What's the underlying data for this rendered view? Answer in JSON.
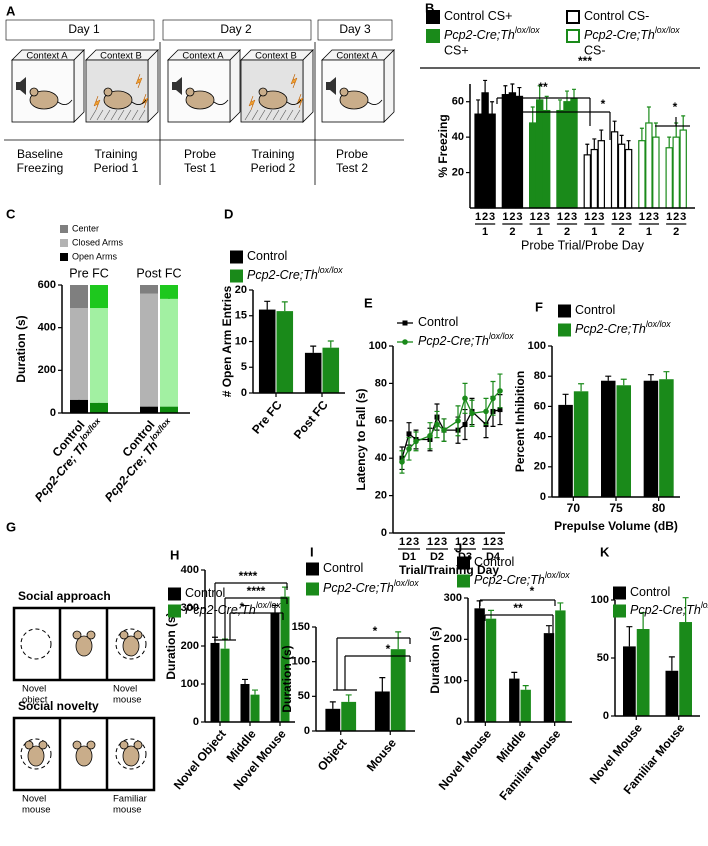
{
  "panel_labels": [
    "A",
    "B",
    "C",
    "D",
    "E",
    "F",
    "G",
    "H",
    "I",
    "J",
    "K"
  ],
  "diagram_a": {
    "days": [
      "Day 1",
      "Day 2",
      "Day 3"
    ],
    "contexts": [
      "Context A",
      "Context B",
      "Context A",
      "Context B",
      "Context A"
    ],
    "phases": [
      [
        "Baseline",
        "Freezing"
      ],
      [
        "Training",
        "Period 1"
      ],
      [
        "Probe",
        "Test 1"
      ],
      [
        "Training",
        "Period 2"
      ],
      [
        "Probe",
        "Test 2"
      ]
    ]
  },
  "diagram_g": {
    "sections": [
      {
        "title": "Social approach",
        "labels": [
          [
            "Novel",
            "object"
          ],
          [
            "Novel",
            "mouse"
          ]
        ]
      },
      {
        "title": "Social novelty",
        "labels": [
          [
            "Novel",
            "mouse"
          ],
          [
            "Familiar",
            "mouse"
          ]
        ]
      }
    ]
  },
  "chart_data": [
    {
      "type": "probe_bar",
      "ylabel": "% Freezing",
      "xlabel": "Probe Trial/Probe Day",
      "trials": [
        "1",
        "2",
        "3"
      ],
      "days": [
        "1",
        "2"
      ],
      "ylim": [
        0,
        70
      ],
      "yticks": [
        20,
        40,
        60
      ],
      "series": [
        {
          "name": "Control CS+",
          "color": "#000000",
          "filled": true,
          "values": [
            53,
            65,
            53,
            64,
            65,
            63
          ],
          "errors": [
            8,
            7,
            7,
            5,
            5,
            5
          ]
        },
        {
          "name": "Pcp2-Cre;Th",
          "name_sup": "lox/lox",
          "name_suffix": "CS+",
          "color": "#1a8a1a",
          "filled": true,
          "values": [
            48,
            61,
            55,
            55,
            60,
            62
          ],
          "errors": [
            9,
            8,
            8,
            6,
            6,
            5
          ]
        },
        {
          "name": "Control CS-",
          "color": "#000000",
          "filled": false,
          "values": [
            30,
            33,
            38,
            43,
            36,
            33
          ],
          "errors": [
            6,
            6,
            6,
            6,
            5,
            5
          ]
        },
        {
          "name": "Pcp2-Cre;Th",
          "name_sup": "lox/lox",
          "name_suffix": "CS-",
          "color": "#1a8a1a",
          "filled": false,
          "values": [
            38,
            48,
            40,
            34,
            40,
            44
          ],
          "errors": [
            7,
            9,
            8,
            6,
            8,
            8
          ]
        }
      ],
      "annotations": [
        "***",
        "**",
        "*",
        "*"
      ]
    },
    {
      "type": "stacked_bar",
      "ylabel": "Duration (s)",
      "groups": [
        "Pre FC",
        "Post FC"
      ],
      "categories": [
        "Control",
        "Pcp2-Cre; Th",
        "Control",
        "Pcp2-Cre; Th"
      ],
      "category_sup": [
        null,
        "lox/lox",
        null,
        "lox/lox"
      ],
      "ylim": [
        0,
        600
      ],
      "yticks": [
        0,
        200,
        400,
        600
      ],
      "series": [
        {
          "name": "Center",
          "colors": [
            "#7f7f7f",
            "#1ec81e"
          ],
          "values": [
            108,
            108,
            40,
            65
          ]
        },
        {
          "name": "Closed Arms",
          "colors": [
            "#b3b3b3",
            "#a2f0a2"
          ],
          "values": [
            430,
            444,
            530,
            505
          ],
          "errors": [
            8,
            6,
            6,
            6
          ]
        },
        {
          "name": "Open Arms",
          "colors": [
            "#000000",
            "#0d8a0d"
          ],
          "values": [
            62,
            48,
            30,
            30
          ],
          "errors": [
            5,
            4,
            3,
            3
          ]
        }
      ]
    },
    {
      "type": "bar",
      "ylabel": "# Open Arm Entries",
      "categories": [
        "Pre FC",
        "Post FC"
      ],
      "ylim": [
        0,
        20
      ],
      "yticks": [
        0,
        5,
        10,
        15,
        20
      ],
      "series": [
        {
          "name": "Control",
          "color": "#000000",
          "values": [
            16.2,
            7.8
          ],
          "errors": [
            1.6,
            1.3
          ]
        },
        {
          "name": "Pcp2-Cre;Th",
          "name_sup": "lox/lox",
          "color": "#1a8a1a",
          "values": [
            15.9,
            8.8
          ],
          "errors": [
            1.8,
            1.3
          ]
        }
      ]
    },
    {
      "type": "line",
      "ylabel": "Latency to Fall (s)",
      "xlabel": "Trial/Training Day",
      "categories": [
        "1",
        "2",
        "3",
        "1",
        "2",
        "3",
        "1",
        "2",
        "3",
        "1",
        "2",
        "3"
      ],
      "groups": [
        "D1",
        "D2",
        "D3",
        "D4"
      ],
      "ylim": [
        0,
        100
      ],
      "yticks": [
        0,
        20,
        40,
        60,
        80,
        100
      ],
      "series": [
        {
          "name": "Control",
          "color": "#000000",
          "values": [
            40,
            53,
            50,
            50,
            62,
            55,
            55,
            58,
            65,
            58,
            65,
            66
          ],
          "errors": [
            6,
            6,
            5,
            6,
            7,
            6,
            7,
            8,
            7,
            7,
            8,
            8
          ]
        },
        {
          "name": "Pcp2-Cre;Th",
          "name_sup": "lox/lox",
          "color": "#1a8a1a",
          "values": [
            38,
            45,
            49,
            52,
            58,
            55,
            60,
            72,
            64,
            65,
            72,
            76
          ],
          "errors": [
            6,
            6,
            5,
            7,
            7,
            6,
            8,
            8,
            7,
            7,
            9,
            9
          ]
        }
      ]
    },
    {
      "type": "bar",
      "ylabel": "Percent Inhibition",
      "xlabel": "Prepulse Volume (dB)",
      "categories": [
        "70",
        "75",
        "80"
      ],
      "ylim": [
        0,
        100
      ],
      "yticks": [
        0,
        20,
        40,
        60,
        80,
        100
      ],
      "series": [
        {
          "name": "Control",
          "color": "#000000",
          "values": [
            61,
            77,
            77
          ],
          "errors": [
            7,
            3,
            4
          ]
        },
        {
          "name": "Pcp2-Cre;Th",
          "name_sup": "lox/lox",
          "color": "#1a8a1a",
          "values": [
            70,
            74,
            78
          ],
          "errors": [
            5,
            4,
            5
          ]
        }
      ]
    },
    {
      "type": "bar",
      "ylabel": "Duration (s)",
      "categories": [
        "Novel Object",
        "Middle",
        "Novel Mouse"
      ],
      "ylim": [
        0,
        400
      ],
      "yticks": [
        0,
        100,
        200,
        300,
        400
      ],
      "series": [
        {
          "name": "Control",
          "color": "#000000",
          "values": [
            208,
            100,
            287
          ],
          "errors": [
            15,
            12,
            20
          ]
        },
        {
          "name": "Pcp2-Cre;Th",
          "name_sup": "lox/lox",
          "color": "#1a8a1a",
          "values": [
            193,
            72,
            330
          ],
          "errors": [
            25,
            12,
            25
          ]
        }
      ],
      "annotations": [
        "****",
        "****",
        "*"
      ]
    },
    {
      "type": "bar",
      "ylabel": "Duration (s)",
      "categories": [
        "Object",
        "Mouse"
      ],
      "ylim": [
        0,
        150
      ],
      "yticks": [
        0,
        50,
        100,
        150
      ],
      "series": [
        {
          "name": "Control",
          "color": "#000000",
          "values": [
            32,
            57
          ],
          "errors": [
            10,
            20
          ]
        },
        {
          "name": "Pcp2-Cre;Th",
          "name_sup": "lox/lox",
          "color": "#1a8a1a",
          "values": [
            42,
            118
          ],
          "errors": [
            10,
            25
          ]
        }
      ],
      "annotations": [
        "*",
        "*"
      ]
    },
    {
      "type": "bar",
      "ylabel": "Duration (s)",
      "categories": [
        "Novel Mouse",
        "Middle",
        "Familiar Mouse"
      ],
      "ylim": [
        0,
        300
      ],
      "yticks": [
        0,
        100,
        200,
        300
      ],
      "series": [
        {
          "name": "Control",
          "color": "#000000",
          "values": [
            275,
            105,
            215
          ],
          "errors": [
            18,
            15,
            18
          ]
        },
        {
          "name": "Pcp2-Cre;Th",
          "name_sup": "lox/lox",
          "color": "#1a8a1a",
          "values": [
            250,
            78,
            270
          ],
          "errors": [
            20,
            10,
            18
          ]
        }
      ],
      "annotations": [
        "*",
        "**"
      ]
    },
    {
      "type": "bar",
      "categories": [
        "Novel Mouse",
        "Familiar Mouse"
      ],
      "ylim": [
        0,
        100
      ],
      "yticks": [
        0,
        50,
        100
      ],
      "series": [
        {
          "name": "Control",
          "color": "#000000",
          "values": [
            60,
            39
          ],
          "errors": [
            17,
            12
          ]
        },
        {
          "name": "Pcp2-Cre;Th",
          "name_sup": "lox/lox",
          "color": "#1a8a1a",
          "values": [
            75,
            81
          ],
          "errors": [
            14,
            21
          ]
        }
      ]
    }
  ]
}
